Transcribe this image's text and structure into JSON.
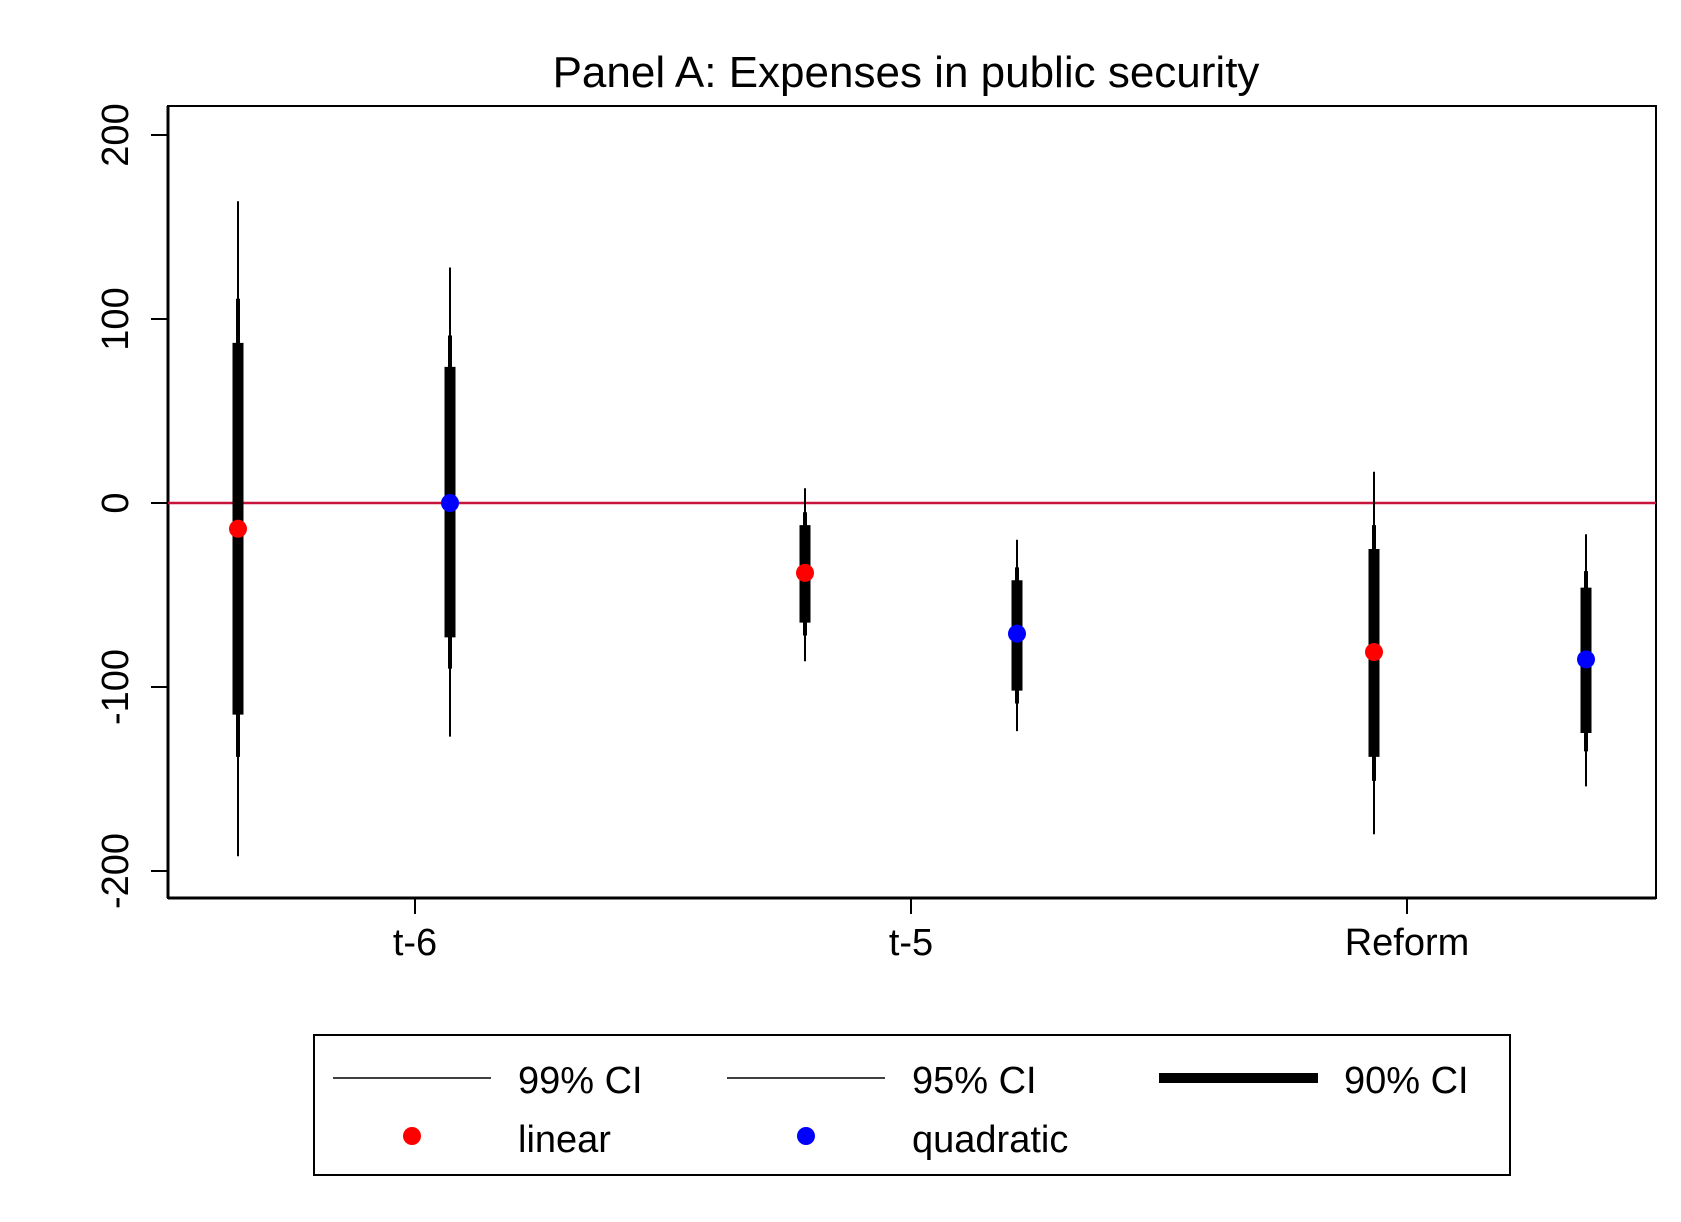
{
  "chart_data": {
    "type": "scatter",
    "title": "Panel A: Expenses in public security",
    "xlabel": "",
    "ylabel": "",
    "ylim": [
      -210,
      200
    ],
    "yticks": [
      "200",
      "100",
      "0",
      "-100",
      "-200"
    ],
    "ytick_values": [
      200,
      100,
      0,
      -100,
      -200
    ],
    "categories": [
      "t-6",
      "t-5",
      "Reform"
    ],
    "reference_line": {
      "y": 0,
      "color": "#c8143c"
    },
    "grid": false,
    "legend": {
      "placement": "bottom",
      "entries": [
        "99% CI",
        "95% CI",
        "90% CI",
        "linear",
        "quadratic"
      ]
    },
    "series": [
      {
        "name": "linear",
        "color": "#ff0000",
        "points": [
          {
            "category": "t-6",
            "estimate": -14,
            "ci99": [
              -192,
              164
            ],
            "ci95": [
              -138,
              111
            ],
            "ci90": [
              -115,
              87
            ]
          },
          {
            "category": "t-5",
            "estimate": -38,
            "ci99": [
              -86,
              8
            ],
            "ci95": [
              -72,
              -5
            ],
            "ci90": [
              -65,
              -12
            ]
          },
          {
            "category": "Reform",
            "estimate": -81,
            "ci99": [
              -180,
              17
            ],
            "ci95": [
              -151,
              -12
            ],
            "ci90": [
              -138,
              -25
            ]
          }
        ]
      },
      {
        "name": "quadratic",
        "color": "#0000ff",
        "points": [
          {
            "category": "t-6",
            "estimate": 0,
            "ci99": [
              -127,
              128
            ],
            "ci95": [
              -90,
              91
            ],
            "ci90": [
              -73,
              74
            ]
          },
          {
            "category": "t-5",
            "estimate": -71,
            "ci99": [
              -124,
              -20
            ],
            "ci95": [
              -109,
              -35
            ],
            "ci90": [
              -102,
              -42
            ]
          },
          {
            "category": "Reform",
            "estimate": -85,
            "ci99": [
              -154,
              -17
            ],
            "ci95": [
              -135,
              -37
            ],
            "ci90": [
              -125,
              -46
            ]
          }
        ]
      }
    ]
  }
}
